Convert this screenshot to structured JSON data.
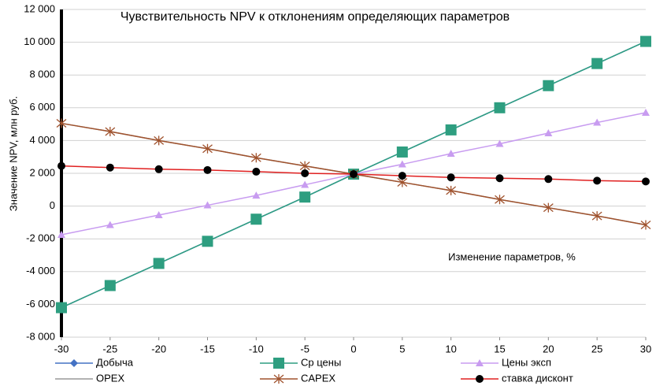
{
  "chart_data": {
    "type": "line",
    "title": "Чувствительность NPV к отклонениям определяющих параметров",
    "x_label": "Изменение параметров, %",
    "y_label": "Значение NPV, млн руб.",
    "x": [
      -30,
      -25,
      -20,
      -15,
      -10,
      -5,
      0,
      5,
      10,
      15,
      20,
      25,
      30
    ],
    "xlim": [
      -30,
      30
    ],
    "xticks": [
      -30,
      -25,
      -20,
      -15,
      -10,
      -5,
      0,
      5,
      10,
      15,
      20,
      25,
      30
    ],
    "ylim": [
      -8000,
      12000
    ],
    "yticks": [
      {
        "value": -8000,
        "label": "-8 000"
      },
      {
        "value": -6000,
        "label": "-6 000"
      },
      {
        "value": -4000,
        "label": "-4 000"
      },
      {
        "value": -2000,
        "label": "-2 000"
      },
      0,
      {
        "value": 2000,
        "label": "2 000"
      },
      {
        "value": 4000,
        "label": "4 000"
      },
      {
        "value": 6000,
        "label": "6 000"
      },
      {
        "value": 8000,
        "label": "8 000"
      },
      {
        "value": 10000,
        "label": "10 000"
      },
      {
        "value": 12000,
        "label": "12 000"
      }
    ],
    "grid": true,
    "legend": "bottom",
    "series": [
      {
        "name": "Добыча",
        "color": "#4472c4",
        "marker": "diamond",
        "values": [
          -6200,
          -4850,
          -3500,
          -2150,
          -800,
          550,
          1950,
          3300,
          4650,
          6000,
          7350,
          8700,
          10050
        ]
      },
      {
        "name": "Ср цены",
        "color": "#2e9e80",
        "marker": "square",
        "values": [
          -6200,
          -4850,
          -3500,
          -2150,
          -800,
          550,
          1950,
          3300,
          4650,
          6000,
          7350,
          8700,
          10050
        ]
      },
      {
        "name": "Цены эксп",
        "color": "#c89cf0",
        "marker": "triangle",
        "values": [
          -1750,
          -1150,
          -550,
          50,
          650,
          1300,
          1950,
          2550,
          3200,
          3800,
          4450,
          5100,
          5700
        ]
      },
      {
        "name": "OPEX",
        "color": "#999999",
        "marker": "none",
        "values": [
          5050,
          4550,
          4000,
          3500,
          2950,
          2450,
          1950,
          1450,
          950,
          400,
          -100,
          -600,
          -1150
        ]
      },
      {
        "name": "CAPEX",
        "color": "#a0522d",
        "marker": "star",
        "values": [
          5050,
          4550,
          4000,
          3500,
          2950,
          2450,
          1950,
          1450,
          950,
          400,
          -100,
          -600,
          -1150
        ]
      },
      {
        "name": "ставка дисконт",
        "color": "#e02020",
        "marker": "circle",
        "marker_color": "#000000",
        "values": [
          2450,
          2350,
          2250,
          2200,
          2100,
          2000,
          1950,
          1850,
          1750,
          1700,
          1650,
          1550,
          1500
        ]
      }
    ]
  }
}
